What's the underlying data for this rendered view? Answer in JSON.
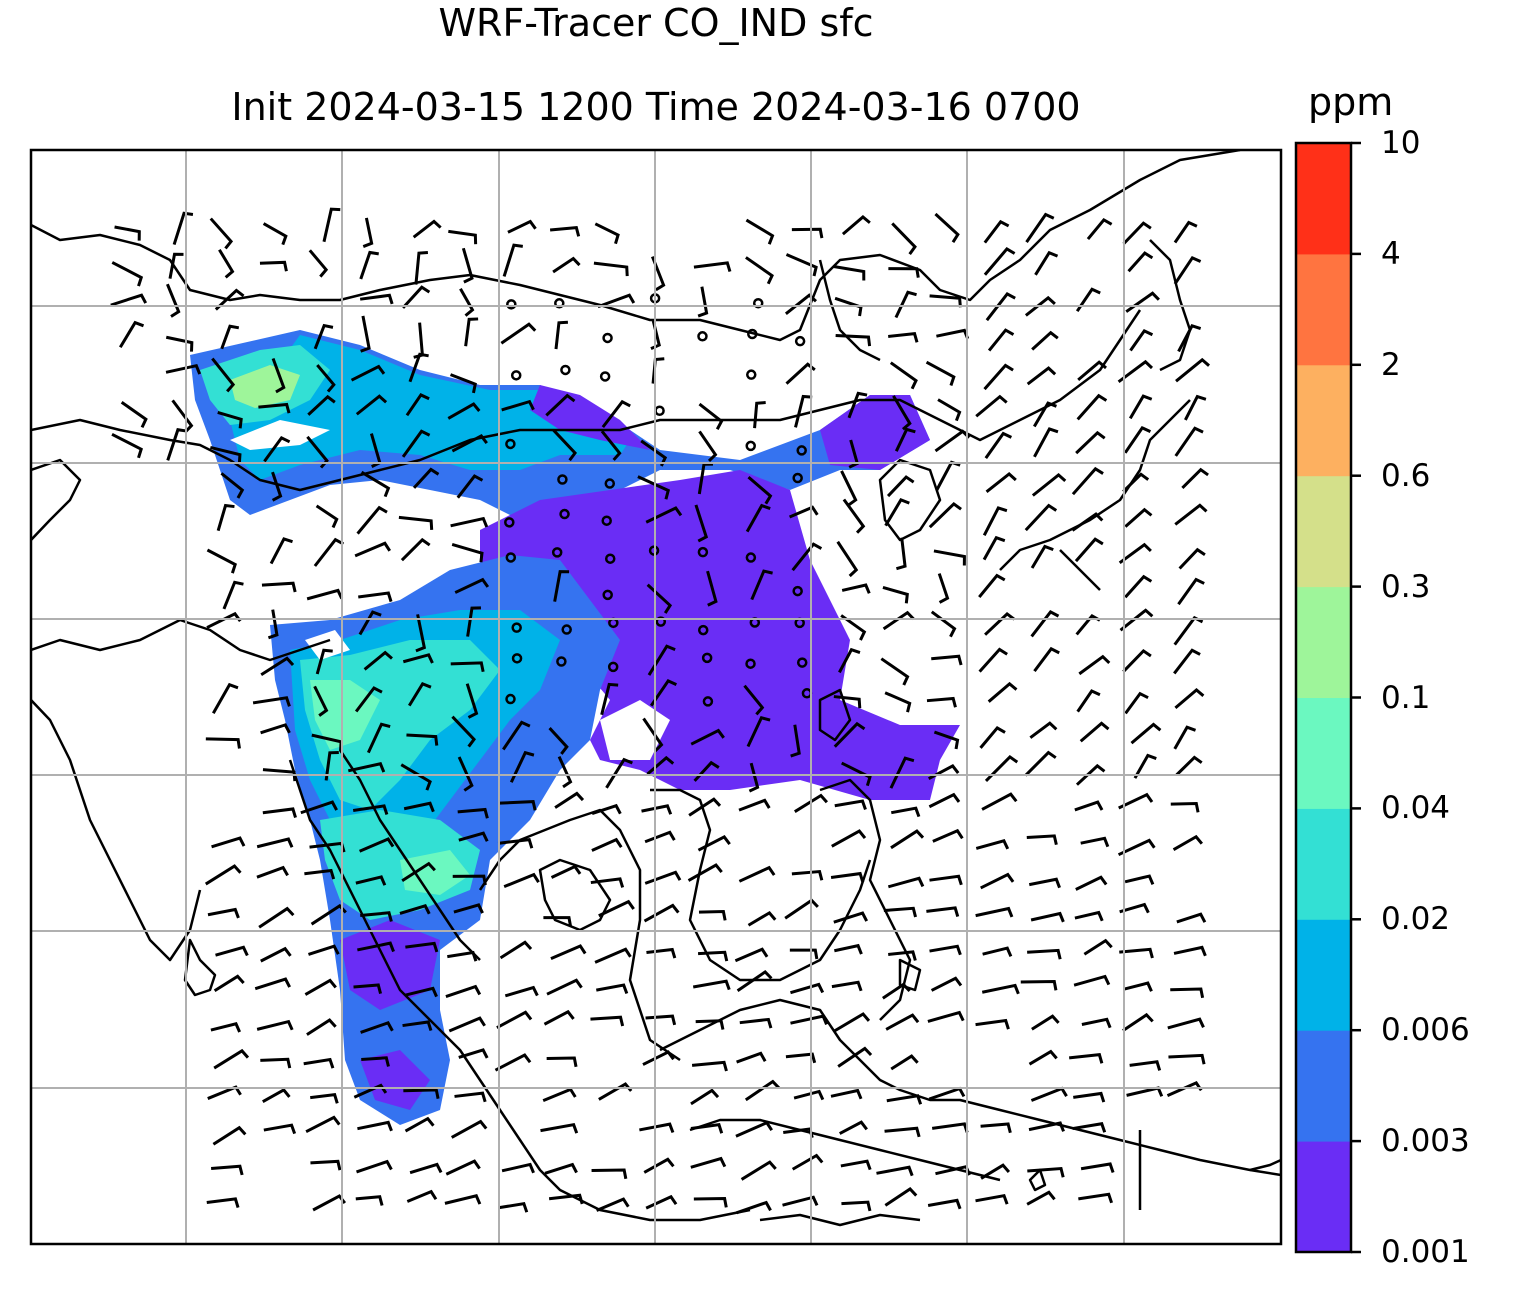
{
  "title": {
    "line1": "WRF-Tracer CO_IND sfc",
    "line2": "Init 2024-03-15 1200 Time 2024-03-16 0700"
  },
  "colorbar": {
    "unit": "ppm",
    "levels": [
      "0.001",
      "0.003",
      "0.006",
      "0.02",
      "0.04",
      "0.1",
      "0.3",
      "0.6",
      "2",
      "4",
      "10"
    ],
    "colors": [
      "#6a2df5",
      "#3573f0",
      "#00b2e8",
      "#33e0d4",
      "#6bf8c0",
      "#9ef59a",
      "#d4e08a",
      "#fdb060",
      "#ff7440",
      "#ff3018"
    ]
  },
  "map": {
    "projection": "Lambert-style regional domain",
    "field": "CO_IND surface tracer (ppm) with wind barbs",
    "coastline_color": "#000000",
    "gridline_color": "#b0b0b0"
  }
}
